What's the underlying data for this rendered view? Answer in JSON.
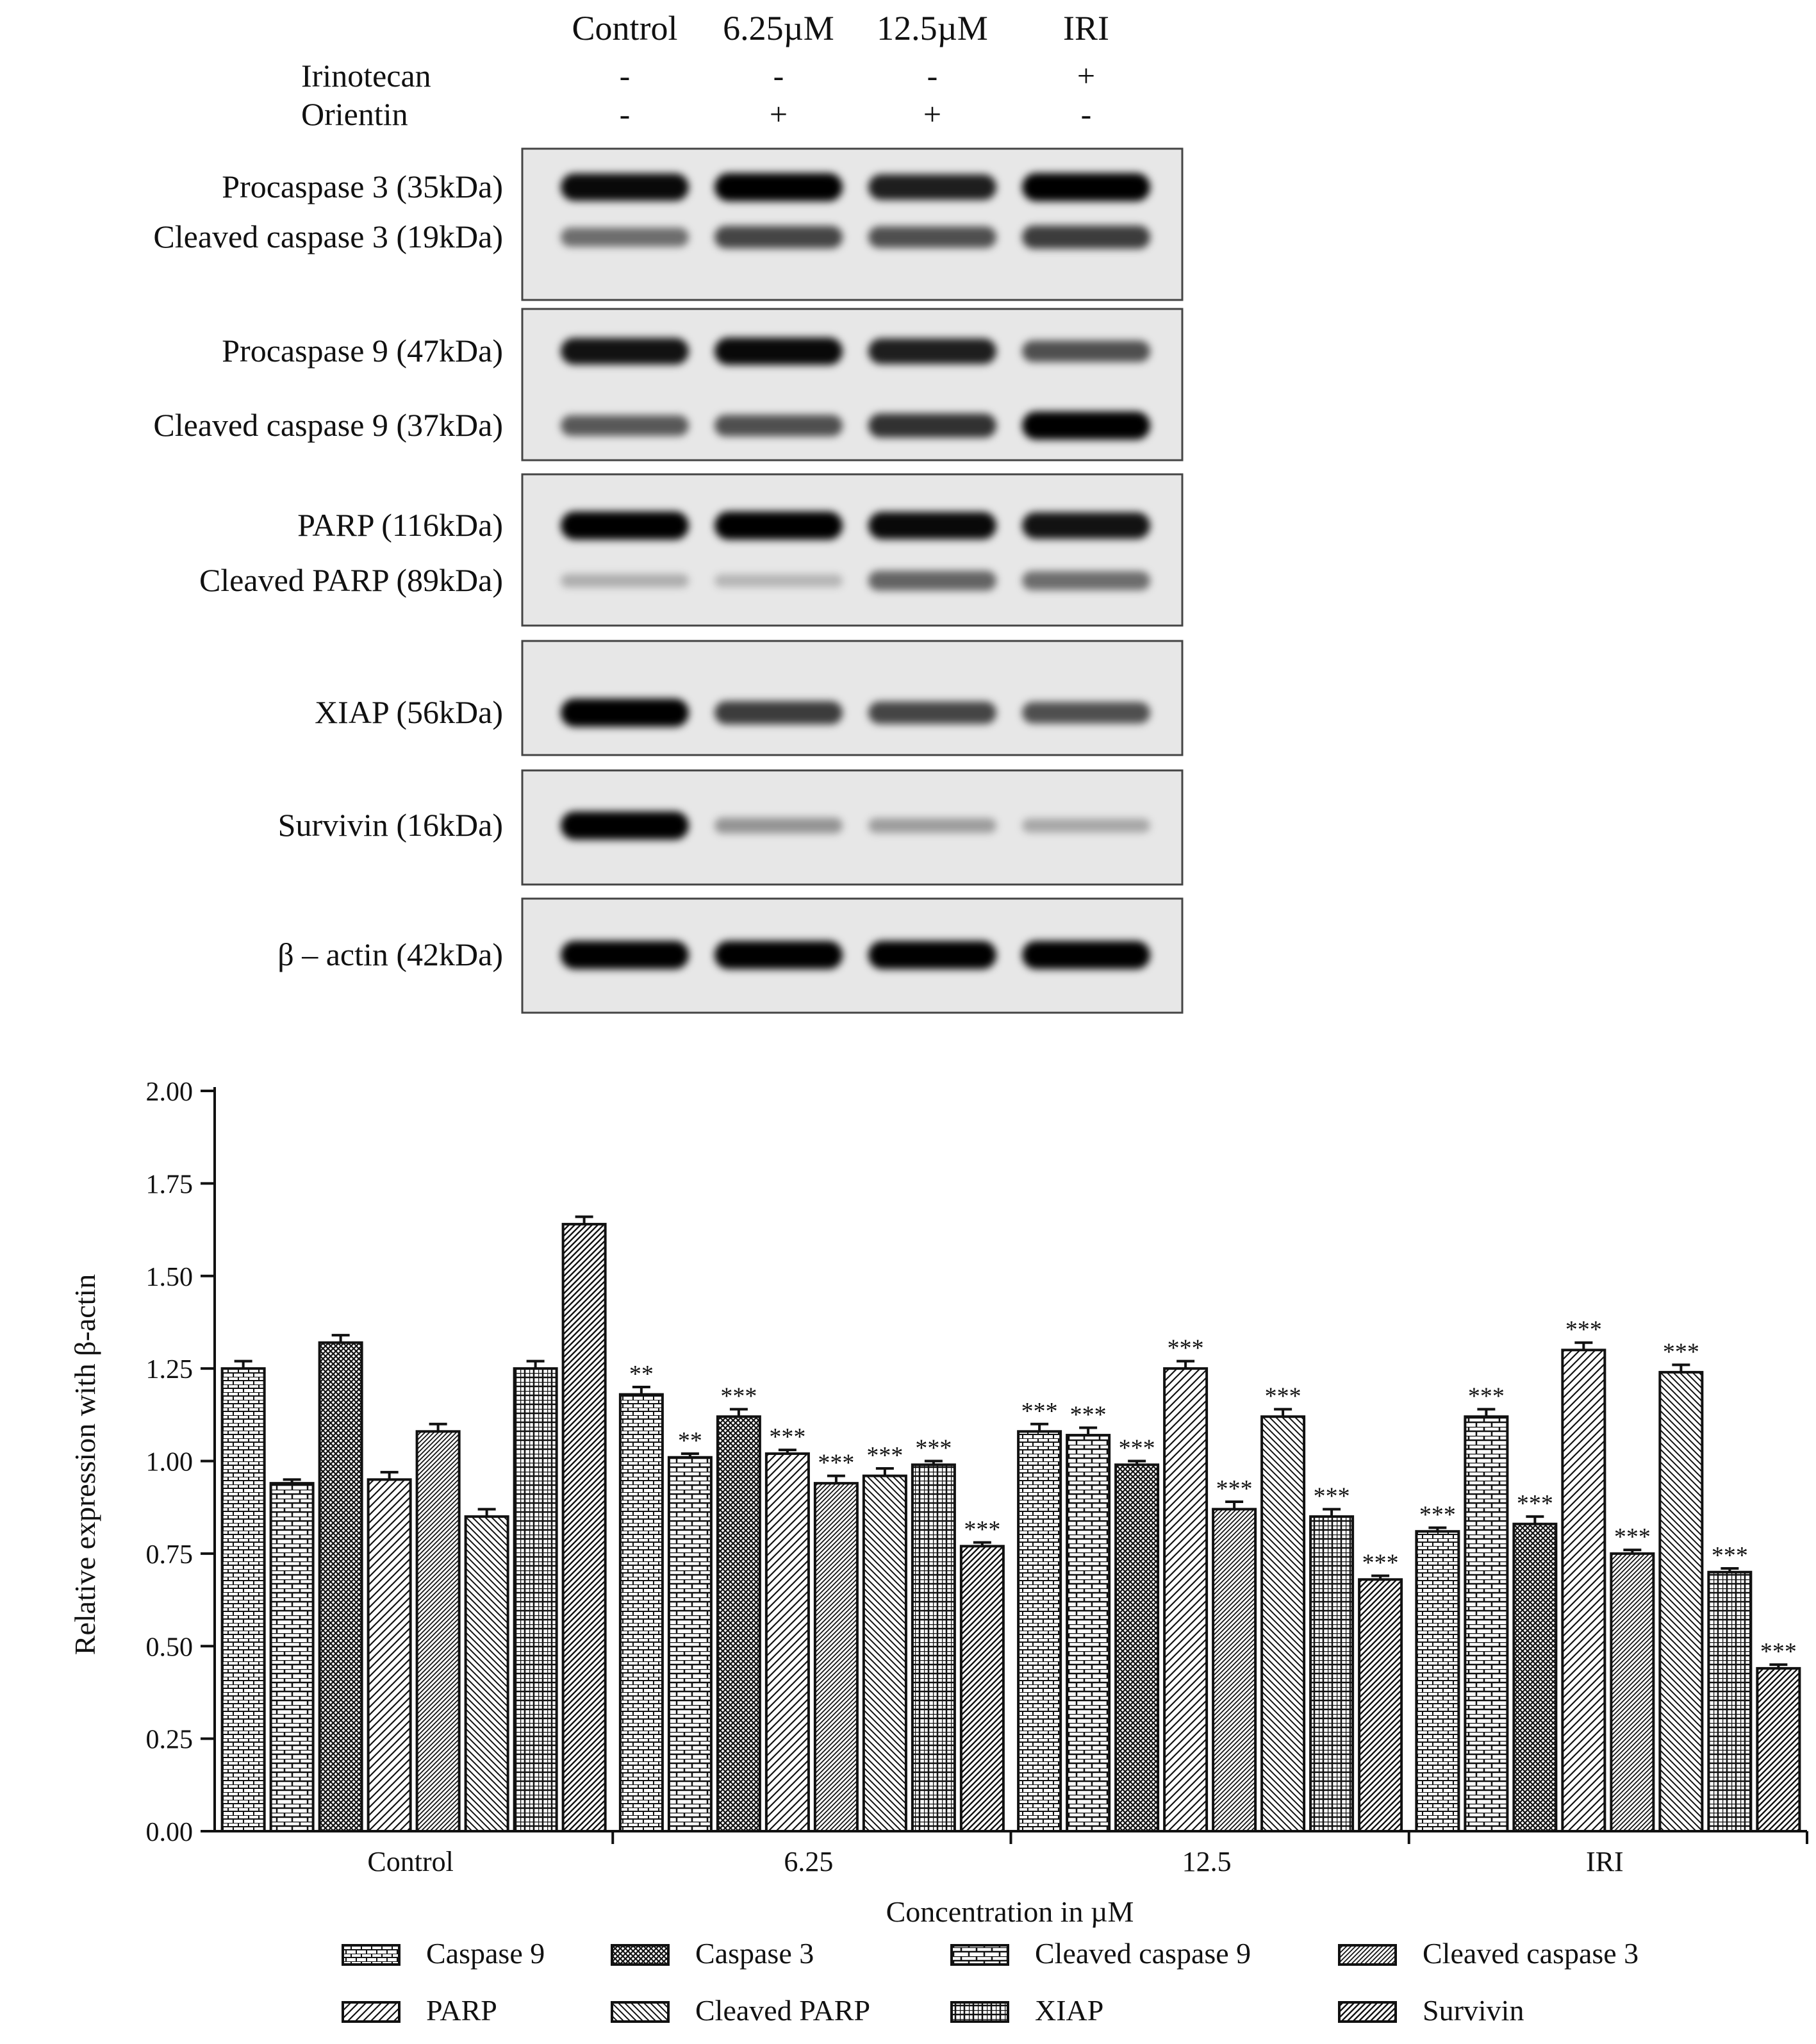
{
  "blot": {
    "lanes": [
      "Control",
      "6.25µM",
      "12.5µM",
      "IRI"
    ],
    "treatments": [
      {
        "name": "Irinotecan",
        "signs": [
          "-",
          "-",
          "-",
          "+"
        ]
      },
      {
        "name": "Orientin",
        "signs": [
          "-",
          "+",
          "+",
          "-"
        ]
      }
    ],
    "panels": [
      {
        "labels": [
          "Procaspase 3 (35kDa)",
          "Cleaved caspase 3 (19kDa)"
        ],
        "bands": [
          [
            0.95,
            1.0,
            0.85,
            1.0
          ],
          [
            0.45,
            0.65,
            0.6,
            0.7
          ]
        ]
      },
      {
        "labels": [
          "Procaspase 9 (47kDa)",
          "Cleaved caspase 9 (37kDa)"
        ],
        "bands": [
          [
            0.9,
            0.95,
            0.85,
            0.6
          ],
          [
            0.55,
            0.6,
            0.75,
            1.0
          ]
        ]
      },
      {
        "labels": [
          "PARP (116kDa)",
          "Cleaved PARP (89kDa)"
        ],
        "bands": [
          [
            1.0,
            1.0,
            0.95,
            0.9
          ],
          [
            0.12,
            0.08,
            0.5,
            0.45
          ]
        ]
      },
      {
        "labels": [
          "XIAP  (56kDa)"
        ],
        "bands": [
          [
            1.0,
            0.7,
            0.65,
            0.6
          ]
        ]
      },
      {
        "labels": [
          "Survivin (16kDa)"
        ],
        "bands": [
          [
            1.0,
            0.25,
            0.2,
            0.15
          ]
        ]
      },
      {
        "labels": [
          "β – actin (42kDa)"
        ],
        "bands": [
          [
            1.0,
            1.0,
            1.0,
            1.0
          ]
        ]
      }
    ]
  },
  "chart_data": {
    "type": "bar",
    "xlabel": "Concentration in µM",
    "ylabel": "Relative expression with β-actin",
    "ylim": [
      0,
      2.0
    ],
    "yticks": [
      "0.00",
      "0.25",
      "0.50",
      "0.75",
      "1.00",
      "1.25",
      "1.50",
      "1.75",
      "2.00"
    ],
    "categories": [
      "Control",
      "6.25",
      "12.5",
      "IRI"
    ],
    "series": [
      {
        "name": "Caspase 9",
        "pattern": "brick",
        "values": [
          1.25,
          1.18,
          1.08,
          0.81
        ],
        "errors": [
          0.02,
          0.02,
          0.02,
          0.01
        ],
        "sig": [
          "",
          "**",
          "***",
          "***"
        ]
      },
      {
        "name": "Cleaved caspase 9",
        "pattern": "hbrick",
        "values": [
          0.94,
          1.01,
          1.07,
          1.12
        ],
        "errors": [
          0.01,
          0.01,
          0.02,
          0.02
        ],
        "sig": [
          "",
          "**",
          "***",
          "***"
        ]
      },
      {
        "name": "Caspase 3",
        "pattern": "cross",
        "values": [
          1.32,
          1.12,
          0.99,
          0.83
        ],
        "errors": [
          0.02,
          0.02,
          0.01,
          0.02
        ],
        "sig": [
          "",
          "***",
          "***",
          "***"
        ]
      },
      {
        "name": "PARP",
        "pattern": "diag",
        "values": [
          0.95,
          1.02,
          1.25,
          1.3
        ],
        "errors": [
          0.02,
          0.01,
          0.02,
          0.02
        ],
        "sig": [
          "",
          "***",
          "***",
          "***"
        ]
      },
      {
        "name": "Cleaved caspase 3",
        "pattern": "diagdense",
        "values": [
          1.08,
          0.94,
          0.87,
          0.75
        ],
        "errors": [
          0.02,
          0.02,
          0.02,
          0.01
        ],
        "sig": [
          "",
          "***",
          "***",
          "***"
        ]
      },
      {
        "name": "Cleaved PARP",
        "pattern": "backdiag",
        "values": [
          0.85,
          0.96,
          1.12,
          1.24
        ],
        "errors": [
          0.02,
          0.02,
          0.02,
          0.02
        ],
        "sig": [
          "",
          "***",
          "***",
          "***"
        ]
      },
      {
        "name": "XIAP",
        "pattern": "grid",
        "values": [
          1.25,
          0.99,
          0.85,
          0.7
        ],
        "errors": [
          0.02,
          0.01,
          0.02,
          0.01
        ],
        "sig": [
          "",
          "***",
          "***",
          "***"
        ]
      },
      {
        "name": "Survivin",
        "pattern": "diagwide",
        "values": [
          1.64,
          0.77,
          0.68,
          0.44
        ],
        "errors": [
          0.02,
          0.01,
          0.01,
          0.01
        ],
        "sig": [
          "",
          "***",
          "***",
          "***"
        ]
      }
    ],
    "legend": {
      "placement": "bottom",
      "order": [
        "Caspase 9",
        "Caspase 3",
        "Cleaved caspase 9",
        "Cleaved caspase 3",
        "PARP",
        "Cleaved PARP",
        "XIAP",
        "Survivin"
      ]
    }
  }
}
